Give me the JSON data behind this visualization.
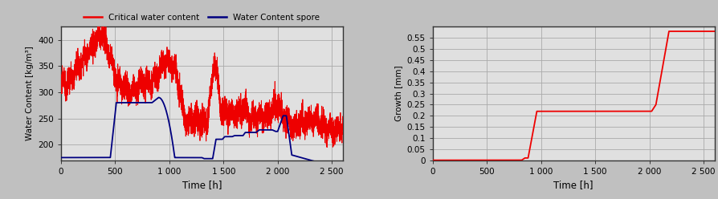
{
  "left_chart": {
    "xlabel": "Time [h]",
    "ylabel": "Water Content [kg/m³]",
    "xlim": [
      0,
      2600
    ],
    "ylim": [
      170,
      425
    ],
    "yticks": [
      200,
      250,
      300,
      350,
      400
    ],
    "xticks": [
      0,
      500,
      1000,
      1500,
      2000,
      2500
    ],
    "xtick_labels": [
      "0",
      "500",
      "1 000",
      "1 500",
      "2 000",
      "2 500"
    ],
    "grid_color": "#aaaaaa",
    "plot_bg_color": "#e0e0e0",
    "fig_bg_color": "#c0c0c0",
    "line_red_color": "#ee0000",
    "line_blue_color": "#000080",
    "legend_red": "Critical water content",
    "legend_blue": "Water Content spore"
  },
  "right_chart": {
    "xlabel": "Time [h]",
    "ylabel": "Growth [mm]",
    "xlim": [
      0,
      2600
    ],
    "ylim": [
      0,
      0.6
    ],
    "yticks": [
      0,
      0.05,
      0.1,
      0.15,
      0.2,
      0.25,
      0.3,
      0.35,
      0.4,
      0.45,
      0.5,
      0.55
    ],
    "xticks": [
      0,
      500,
      1000,
      1500,
      2000,
      2500
    ],
    "xtick_labels": [
      "0",
      "500",
      "1 000",
      "1 500",
      "2 000",
      "2 500"
    ],
    "grid_color": "#aaaaaa",
    "plot_bg_color": "#e0e0e0",
    "line_red_color": "#ee0000"
  }
}
